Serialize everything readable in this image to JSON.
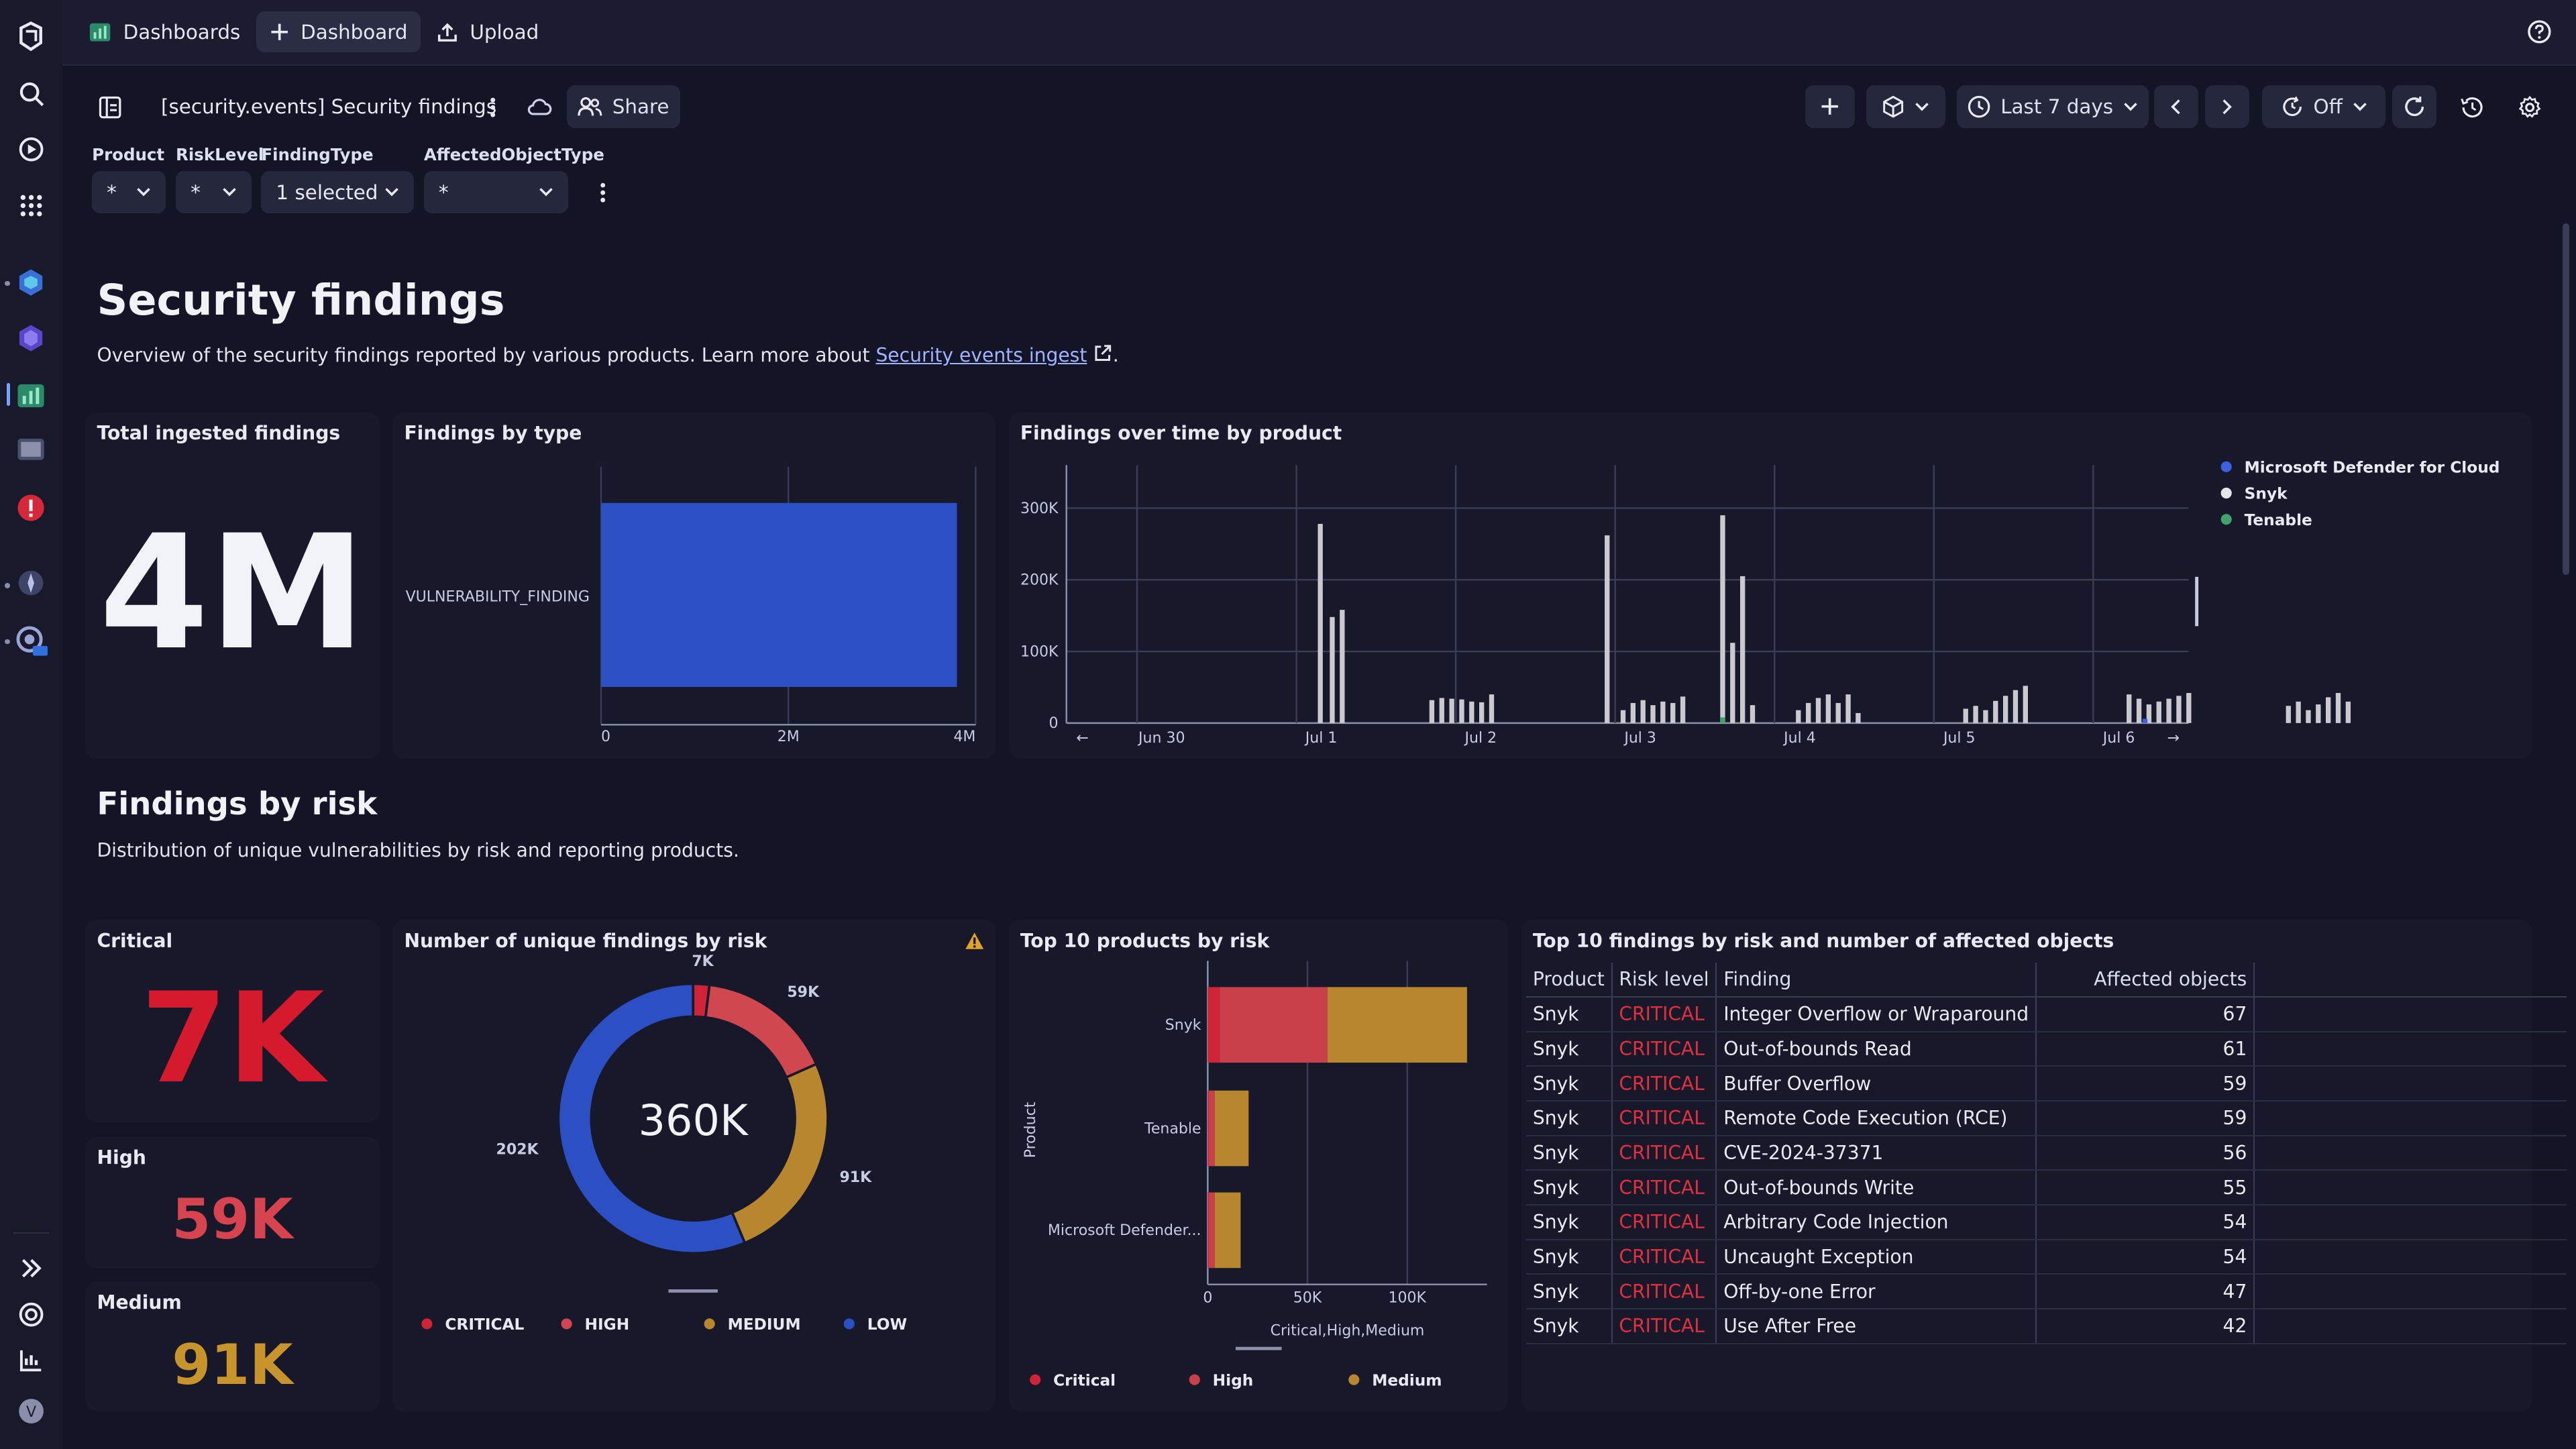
{
  "topbar": {
    "dashboards_label": "Dashboards",
    "new_dashboard_label": "Dashboard",
    "upload_label": "Upload"
  },
  "header": {
    "title": "[security.events] Security findings",
    "share_label": "Share",
    "timeframe_label": "Last 7 days",
    "refresh_label": "Off"
  },
  "filters": [
    {
      "label": "Product",
      "value": "*"
    },
    {
      "label": "RiskLevel",
      "value": "*"
    },
    {
      "label": "FindingType",
      "value": "1 selected"
    },
    {
      "label": "AffectedObjectType",
      "value": "*"
    }
  ],
  "intro": {
    "title": "Security findings",
    "text": "Overview of the security findings reported by various products. Learn more about",
    "link": "Security events ingest",
    "text_end": "."
  },
  "tiles": {
    "total": {
      "title": "Total ingested findings",
      "value": "4M"
    },
    "by_type": {
      "title": "Findings by type"
    },
    "over_time": {
      "title": "Findings over time by product"
    }
  },
  "risk_section": {
    "title": "Findings by risk",
    "text": "Distribution of unique vulnerabilities by risk and reporting products."
  },
  "risk_tiles": [
    {
      "label": "Critical",
      "value": "7K",
      "color": "#d51a2e"
    },
    {
      "label": "High",
      "value": "59K",
      "color": "#d74450"
    },
    {
      "label": "Medium",
      "value": "91K",
      "color": "#c8952c"
    }
  ],
  "donut": {
    "title": "Number of unique findings by risk",
    "center": "360K"
  },
  "top_products": {
    "title": "Top 10 products by risk",
    "ylabel": "Product",
    "xlabel": "Critical,High,Medium"
  },
  "top_findings": {
    "title": "Top 10 findings by risk and number of affected objects",
    "headers": [
      "Product",
      "Risk level",
      "Finding",
      "Affected objects"
    ],
    "rows": [
      [
        "Snyk",
        "CRITICAL",
        "Integer Overflow or Wraparound",
        "67"
      ],
      [
        "Snyk",
        "CRITICAL",
        "Out-of-bounds Read",
        "61"
      ],
      [
        "Snyk",
        "CRITICAL",
        "Buffer Overflow",
        "59"
      ],
      [
        "Snyk",
        "CRITICAL",
        "Remote Code Execution (RCE)",
        "59"
      ],
      [
        "Snyk",
        "CRITICAL",
        "CVE-2024-37371",
        "56"
      ],
      [
        "Snyk",
        "CRITICAL",
        "Out-of-bounds Write",
        "55"
      ],
      [
        "Snyk",
        "CRITICAL",
        "Arbitrary Code Injection",
        "54"
      ],
      [
        "Snyk",
        "CRITICAL",
        "Uncaught Exception",
        "54"
      ],
      [
        "Snyk",
        "CRITICAL",
        "Off-by-one Error",
        "47"
      ],
      [
        "Snyk",
        "CRITICAL",
        "Use After Free",
        "42"
      ]
    ]
  },
  "chart_data": [
    {
      "type": "bar",
      "orientation": "horizontal",
      "categories": [
        "VULNERABILITY_FINDING"
      ],
      "values": [
        3800000
      ],
      "xlim": [
        0,
        4000000
      ],
      "xticks": [
        "0",
        "2M",
        "4M"
      ],
      "color": "#2c4fc4"
    },
    {
      "type": "bar",
      "ylim": [
        0,
        360000
      ],
      "yticks": [
        "300K",
        "200K",
        "100K",
        "0"
      ],
      "xticks": [
        "Jun 30",
        "Jul 1",
        "Jul 2",
        "Jul 3",
        "Jul 4",
        "Jul 5",
        "Jul 6"
      ],
      "legend": [
        "Microsoft Defender for Cloud",
        "Snyk",
        "Tenable"
      ],
      "legend_colors": [
        "#3b61e0",
        "#e6e6e6",
        "#3fa36b"
      ],
      "legend_position": "top-right",
      "series": [
        {
          "name": "Snyk",
          "values": [
            {
              "x": 5.3,
              "y": 278000
            },
            {
              "x": 5.6,
              "y": 148000
            },
            {
              "x": 5.85,
              "y": 158000
            },
            {
              "x": 8.1,
              "y": 32000
            },
            {
              "x": 8.35,
              "y": 35000
            },
            {
              "x": 8.6,
              "y": 34000
            },
            {
              "x": 8.85,
              "y": 33000
            },
            {
              "x": 9.1,
              "y": 30000
            },
            {
              "x": 9.35,
              "y": 29000
            },
            {
              "x": 9.6,
              "y": 40000
            },
            {
              "x": 12.5,
              "y": 262000
            },
            {
              "x": 12.9,
              "y": 18000
            },
            {
              "x": 13.15,
              "y": 28000
            },
            {
              "x": 13.4,
              "y": 32000
            },
            {
              "x": 13.65,
              "y": 25000
            },
            {
              "x": 13.9,
              "y": 30000
            },
            {
              "x": 14.15,
              "y": 28000
            },
            {
              "x": 14.4,
              "y": 37000
            },
            {
              "x": 15.4,
              "y": 290000
            },
            {
              "x": 15.65,
              "y": 112000
            },
            {
              "x": 15.9,
              "y": 205000
            },
            {
              "x": 16.15,
              "y": 25000
            },
            {
              "x": 17.3,
              "y": 18000
            },
            {
              "x": 17.55,
              "y": 28000
            },
            {
              "x": 17.8,
              "y": 35000
            },
            {
              "x": 18.05,
              "y": 40000
            },
            {
              "x": 18.3,
              "y": 28000
            },
            {
              "x": 18.55,
              "y": 40000
            },
            {
              "x": 18.8,
              "y": 14000
            },
            {
              "x": 21.5,
              "y": 20000
            },
            {
              "x": 21.75,
              "y": 24000
            },
            {
              "x": 22.0,
              "y": 18000
            },
            {
              "x": 22.25,
              "y": 31000
            },
            {
              "x": 22.5,
              "y": 38000
            },
            {
              "x": 22.75,
              "y": 46000
            },
            {
              "x": 23.0,
              "y": 52000
            },
            {
              "x": 25.6,
              "y": 40000
            },
            {
              "x": 25.85,
              "y": 34000
            },
            {
              "x": 26.1,
              "y": 26000
            },
            {
              "x": 26.35,
              "y": 30000
            },
            {
              "x": 26.6,
              "y": 34000
            },
            {
              "x": 26.85,
              "y": 38000
            },
            {
              "x": 27.1,
              "y": 42000
            },
            {
              "x": 29.6,
              "y": 24000
            },
            {
              "x": 29.85,
              "y": 30000
            },
            {
              "x": 30.1,
              "y": 18000
            },
            {
              "x": 30.35,
              "y": 26000
            },
            {
              "x": 30.6,
              "y": 36000
            },
            {
              "x": 30.85,
              "y": 42000
            },
            {
              "x": 31.1,
              "y": 30000
            }
          ]
        },
        {
          "name": "Tenable",
          "values": [
            {
              "x": 15.4,
              "y": 8000
            }
          ]
        },
        {
          "name": "Microsoft Defender for Cloud",
          "values": [
            {
              "x": 26.0,
              "y": 6000
            }
          ]
        }
      ]
    },
    {
      "type": "pie",
      "title": "Number of unique findings by risk",
      "labels": [
        "CRITICAL",
        "HIGH",
        "MEDIUM",
        "LOW"
      ],
      "values": [
        7000,
        59000,
        91000,
        202000
      ],
      "data_labels": [
        "7K",
        "59K",
        "91K",
        "202K"
      ],
      "colors": [
        "#cf2338",
        "#d1474f",
        "#b8862d",
        "#2c4fc4"
      ]
    },
    {
      "type": "bar",
      "orientation": "horizontal",
      "stacked": true,
      "categories": [
        "Snyk",
        "Tenable",
        "Microsoft Defender..."
      ],
      "series": [
        {
          "name": "Critical",
          "values": [
            6000,
            500,
            500
          ],
          "color": "#cf2338"
        },
        {
          "name": "High",
          "values": [
            54000,
            3000,
            3000
          ],
          "color": "#c9404a"
        },
        {
          "name": "Medium",
          "values": [
            70000,
            17000,
            13000
          ],
          "color": "#b8862d"
        }
      ],
      "xlim": [
        0,
        140000
      ],
      "xticks": [
        "0",
        "50K",
        "100K"
      ]
    }
  ]
}
